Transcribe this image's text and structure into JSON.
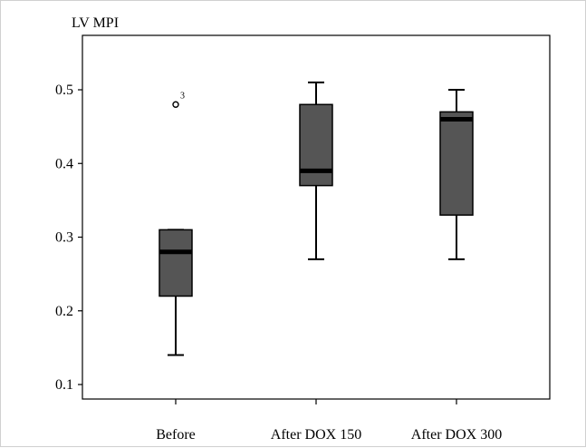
{
  "chart_data": {
    "type": "box",
    "ylabel": "LV MPI",
    "ylim": [
      0.08,
      0.56
    ],
    "yticks": [
      "0.1",
      "0.2",
      "0.3",
      "0.4",
      "0.5"
    ],
    "grid": false,
    "categories": [
      "Before",
      "After DOX 150",
      "After DOX 300"
    ],
    "boxes": [
      {
        "category": "Before",
        "whisker_low": 0.14,
        "q1": 0.22,
        "median": 0.28,
        "q3": 0.31,
        "whisker_high": 0.31,
        "outliers": [
          {
            "value": 0.48,
            "label": "3"
          }
        ]
      },
      {
        "category": "After DOX 150",
        "whisker_low": 0.27,
        "q1": 0.37,
        "median": 0.39,
        "q3": 0.48,
        "whisker_high": 0.51,
        "outliers": []
      },
      {
        "category": "After DOX 300",
        "whisker_low": 0.27,
        "q1": 0.33,
        "median": 0.46,
        "q3": 0.47,
        "whisker_high": 0.5,
        "outliers": []
      }
    ],
    "colors": {
      "box_fill": "#555555",
      "stroke": "#000000",
      "median": "#000000"
    }
  }
}
